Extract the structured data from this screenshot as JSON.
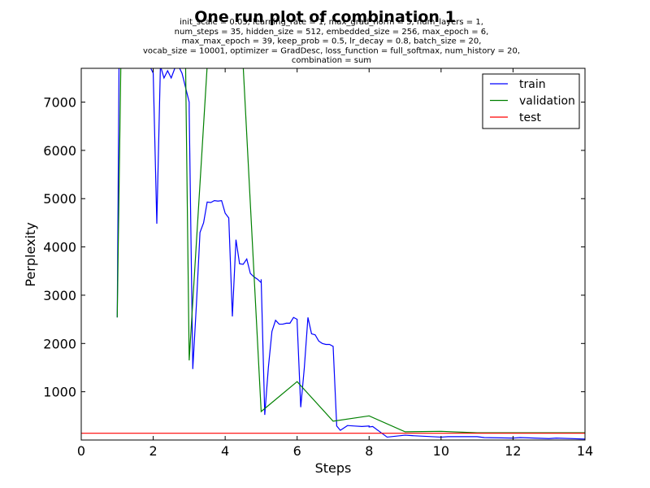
{
  "chart_data": {
    "type": "line",
    "title": "One run plot of combination 1",
    "subtitle_lines": [
      "init_scale = 0.05, learning_rate = 1, max_grad_norm = 5, num_layers = 1,",
      "num_steps = 35, hidden_size = 512, embedded_size = 256, max_epoch = 6,",
      "max_max_epoch = 39, keep_prob = 0.5, lr_decay = 0.8, batch_size = 20,",
      "vocab_size = 10001, optimizer = GradDesc, loss_function = full_softmax, num_history = 20,",
      "combination = sum"
    ],
    "xlabel": "Steps",
    "ylabel": "Perplexity",
    "xlim": [
      0,
      14
    ],
    "ylim": [
      0,
      7700
    ],
    "xticks": [
      0,
      2,
      4,
      6,
      8,
      10,
      12,
      14
    ],
    "yticks": [
      1000,
      2000,
      3000,
      4000,
      5000,
      6000,
      7000
    ],
    "grid": false,
    "legend_position": "top-right",
    "series": [
      {
        "name": "train",
        "color": "#0000ff",
        "x": [
          1.0,
          1.05,
          1.1,
          1.9,
          2.0,
          2.1,
          2.2,
          2.3,
          2.4,
          2.5,
          2.6,
          2.7,
          2.8,
          2.9,
          3.0,
          3.0,
          3.1,
          3.2,
          3.3,
          3.4,
          3.5,
          3.6,
          3.7,
          3.8,
          3.9,
          4.0,
          4.1,
          4.2,
          4.3,
          4.4,
          4.5,
          4.6,
          4.7,
          4.8,
          4.9,
          5.0,
          5.0,
          5.1,
          5.2,
          5.3,
          5.4,
          5.5,
          5.6,
          5.7,
          5.8,
          5.9,
          6.0,
          6.0,
          6.1,
          6.2,
          6.3,
          6.4,
          6.5,
          6.6,
          6.7,
          6.8,
          6.9,
          7.0,
          7.0,
          7.1,
          7.2,
          7.4,
          7.6,
          7.8,
          8.0,
          8.0,
          8.1,
          8.5,
          9.0,
          9.2,
          10.0,
          10.2,
          11.0,
          11.2,
          12.0,
          12.2,
          13.0,
          13.2,
          14.0
        ],
        "y": [
          2540,
          7750,
          7750,
          7750,
          7600,
          4480,
          7750,
          7500,
          7650,
          7500,
          7700,
          7750,
          7600,
          7300,
          7000,
          6820,
          1470,
          2800,
          4300,
          4500,
          4930,
          4920,
          4960,
          4950,
          4960,
          4700,
          4600,
          2560,
          4150,
          3650,
          3640,
          3750,
          3450,
          3380,
          3330,
          3260,
          3330,
          520,
          1500,
          2250,
          2480,
          2400,
          2400,
          2420,
          2420,
          2540,
          2500,
          2450,
          680,
          1500,
          2540,
          2200,
          2180,
          2050,
          2000,
          1980,
          1980,
          1940,
          1940,
          290,
          200,
          300,
          290,
          280,
          290,
          270,
          280,
          60,
          100,
          90,
          60,
          70,
          70,
          50,
          40,
          50,
          30,
          40,
          20
        ],
        "y_tail": []
      },
      {
        "name": "validation",
        "color": "#008000",
        "x": [
          1.0,
          1.1,
          2.9,
          3.0,
          3.5,
          4.5,
          5.0,
          6.0,
          7.0,
          8.0,
          9.0,
          10.0,
          11.0,
          12.0,
          13.0,
          14.0
        ],
        "y": [
          2540,
          7750,
          7750,
          1650,
          7750,
          7750,
          590,
          1210,
          390,
          500,
          170,
          180,
          150,
          150,
          150,
          150
        ]
      },
      {
        "name": "test",
        "color": "#ff0000",
        "x": [
          0,
          14
        ],
        "y": [
          140,
          140
        ]
      }
    ]
  }
}
